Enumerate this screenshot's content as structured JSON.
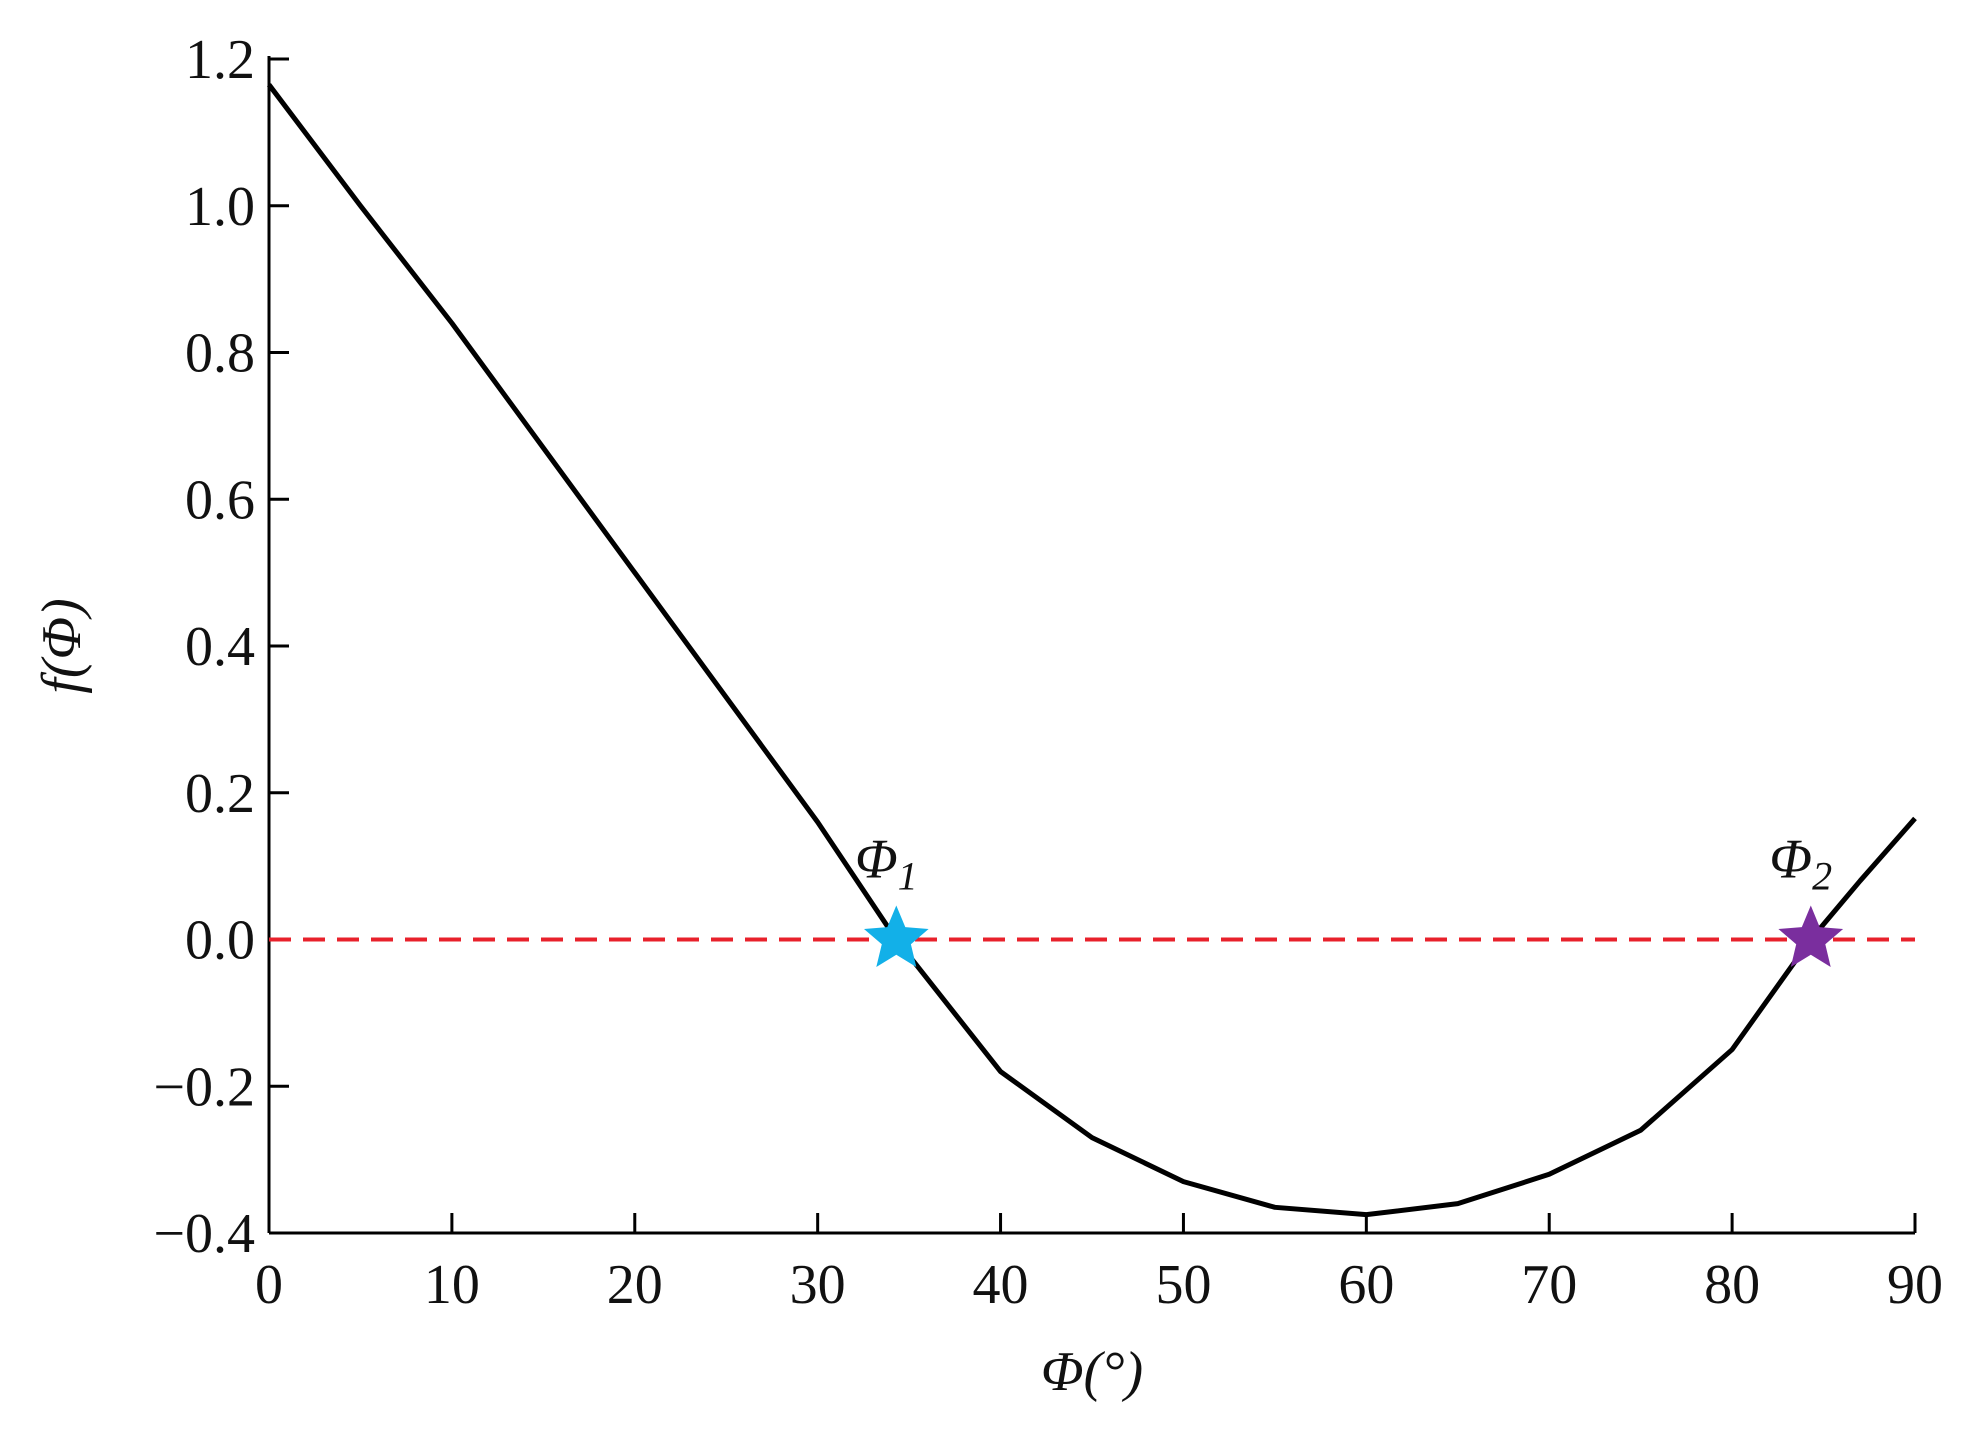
{
  "chart_data": {
    "type": "line",
    "x_label": "Φ(°)",
    "y_label": "f(Φ)",
    "x": [
      0,
      5,
      10,
      15,
      20,
      25,
      30,
      34.3,
      40,
      45,
      50,
      55,
      60,
      65,
      70,
      75,
      80,
      84.3,
      87,
      90
    ],
    "series": [
      {
        "color": "#000000",
        "values": [
          1.165,
          1.0,
          0.84,
          0.67,
          0.5,
          0.33,
          0.16,
          0,
          -0.18,
          -0.27,
          -0.33,
          -0.365,
          -0.375,
          -0.36,
          -0.32,
          -0.26,
          -0.15,
          0,
          0.08,
          0.165
        ]
      }
    ],
    "xlim": [
      0,
      90
    ],
    "ylim": [
      -0.4,
      1.2
    ],
    "xticks": [
      0,
      10,
      20,
      30,
      40,
      50,
      60,
      70,
      80,
      90
    ],
    "yticks": [
      {
        "value": -0.4,
        "label": "−0.4"
      },
      {
        "value": -0.2,
        "label": "−0.2"
      },
      {
        "value": 0,
        "label": "0.0"
      },
      0.2,
      0.4,
      0.6,
      0.8,
      {
        "value": 1,
        "label": "1.0"
      },
      1.2
    ],
    "reference_line": {
      "y": 0,
      "color": "#e8212b"
    },
    "markers": [
      {
        "x": 34.3,
        "y": 0,
        "color": "#12b0e8",
        "symbol": "Φ",
        "subscript": "1"
      },
      {
        "x": 84.3,
        "y": 0,
        "color": "#7a2e9e",
        "symbol": "Φ",
        "subscript": "2"
      }
    ]
  }
}
